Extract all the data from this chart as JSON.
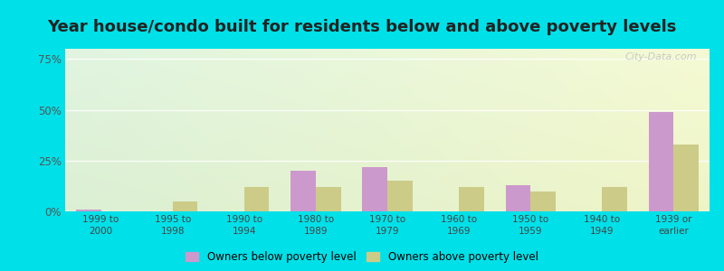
{
  "title": "Year house/condo built for residents below and above poverty levels",
  "categories": [
    "1999 to\n2000",
    "1995 to\n1998",
    "1990 to\n1994",
    "1980 to\n1989",
    "1970 to\n1979",
    "1960 to\n1969",
    "1950 to\n1959",
    "1940 to\n1949",
    "1939 or\nearlier"
  ],
  "below_poverty": [
    1.0,
    0.0,
    0.0,
    20.0,
    22.0,
    0.0,
    13.0,
    0.0,
    49.0
  ],
  "above_poverty": [
    0.0,
    5.0,
    12.0,
    12.0,
    15.0,
    12.0,
    10.0,
    12.0,
    33.0
  ],
  "below_color": "#cc99cc",
  "above_color": "#cccc88",
  "outer_bg": "#00e0e8",
  "ylim": [
    0,
    80
  ],
  "yticks": [
    0,
    25,
    50,
    75
  ],
  "ytick_labels": [
    "0%",
    "25%",
    "50%",
    "75%"
  ],
  "title_fontsize": 13,
  "legend_below_label": "Owners below poverty level",
  "legend_above_label": "Owners above poverty level",
  "bar_width": 0.35,
  "grad_top_left": "#d0eedd",
  "grad_bottom_right": "#eefee8"
}
